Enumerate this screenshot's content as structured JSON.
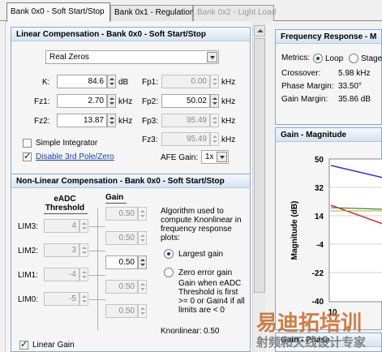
{
  "tabs": [
    {
      "label": "Bank 0x0 - Soft Start/Stop",
      "state": "active"
    },
    {
      "label": "Bank 0x1 - Regulation",
      "state": "normal"
    },
    {
      "label": "Bank 0x2 - Light Load",
      "state": "disabled"
    }
  ],
  "linear": {
    "title": "Linear Compensation - Bank 0x0 - Soft Start/Stop",
    "mode_selected": "Real Zeros",
    "k": {
      "label": "K:",
      "value": "84.6",
      "unit": "dB"
    },
    "fz1": {
      "label": "Fz1:",
      "value": "2.70",
      "unit": "kHz"
    },
    "fz2": {
      "label": "Fz2:",
      "value": "13.87",
      "unit": "kHz"
    },
    "fp1": {
      "label": "Fp1:",
      "value": "0.00",
      "unit": "kHz"
    },
    "fp2": {
      "label": "Fp2:",
      "value": "50.02",
      "unit": "kHz"
    },
    "fp3": {
      "label": "Fp3:",
      "value": "95.49",
      "unit": "kHz"
    },
    "fz3": {
      "label": "Fz3:",
      "value": "95.49",
      "unit": "kHz"
    },
    "simple_integrator": {
      "label": "Simple Integrator",
      "checked": false
    },
    "disable_3rd": {
      "label": "Disable 3rd Pole/Zero",
      "checked": true
    },
    "afe_gain": {
      "label": "AFE Gain:",
      "value": "1x"
    }
  },
  "nonlinear": {
    "title": "Non-Linear Compensation - Bank 0x0 - Soft Start/Stop",
    "col_threshold": "eADC Threshold",
    "col_gain": "Gain",
    "rows": [
      {
        "label": "LIM3:",
        "threshold": "4"
      },
      {
        "label": "LIM2:",
        "threshold": "3"
      },
      {
        "label": "LIM1:",
        "threshold": "-4"
      },
      {
        "label": "LIM0:",
        "threshold": "-5"
      }
    ],
    "gains": [
      "0.50",
      "0.50",
      "0.50",
      "0.50",
      "0.50"
    ],
    "algo_text": "Algorithm used to compute Knonlinear in frequency response plots:",
    "opt_largest": "Largest gain",
    "opt_zero": "Zero error gain",
    "zero_desc": "Gain when eADC Threshold is first >= 0 or Gain4 if all limits are < 0",
    "knonlinear_label": "Knonlinear:",
    "knonlinear_value": "0.50",
    "linear_gain": {
      "label": "Linear Gain",
      "checked": true
    }
  },
  "freq": {
    "title": "Frequency Response - M",
    "metrics_label": "Metrics:",
    "opt_loop": "Loop",
    "opt_stage": "Stage",
    "crossover_label": "Crossover:",
    "crossover_value": "5.98 kHz",
    "phase_margin_label": "Phase Margin:",
    "phase_margin_value": "33.50°",
    "gain_margin_label": "Gain Margin:",
    "gain_margin_value": "35.86 dB"
  },
  "gain_plot": {
    "title": "Gain - Magnitude",
    "ylabel": "Magnitude (dB)",
    "yticks": [
      "50",
      "32",
      "14",
      "-4",
      "-22",
      "-40"
    ],
    "xtick": "10"
  },
  "phase_plot": {
    "title": "Gain - Phase"
  },
  "watermark": {
    "line1": "易迪拓培训",
    "line2": "射频和天线设计专家"
  }
}
